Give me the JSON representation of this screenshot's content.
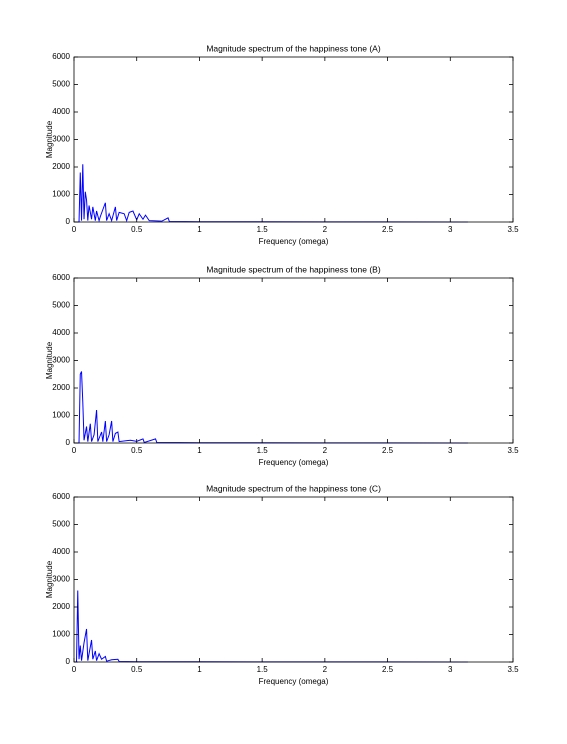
{
  "chart_data": [
    {
      "type": "line",
      "title": "Magnitude spectrum of the happiness tone (A)",
      "xlabel": "Frequency (omega)",
      "ylabel": "Magnitude",
      "color": "#0000ff",
      "x": [
        0,
        0.04,
        0.05,
        0.06,
        0.07,
        0.08,
        0.09,
        0.1,
        0.11,
        0.12,
        0.14,
        0.15,
        0.17,
        0.18,
        0.2,
        0.21,
        0.25,
        0.26,
        0.28,
        0.3,
        0.33,
        0.34,
        0.36,
        0.4,
        0.42,
        0.44,
        0.47,
        0.5,
        0.52,
        0.55,
        0.57,
        0.6,
        0.7,
        0.75,
        0.76,
        1,
        2,
        3.14
      ],
      "values": [
        0,
        0,
        1800,
        50,
        2100,
        100,
        1100,
        800,
        50,
        600,
        100,
        550,
        50,
        400,
        50,
        200,
        700,
        50,
        300,
        50,
        550,
        50,
        350,
        300,
        50,
        350,
        400,
        80,
        300,
        100,
        250,
        50,
        30,
        150,
        20,
        10,
        5,
        0
      ],
      "xlim": [
        0,
        3.5
      ],
      "ylim": [
        0,
        6000
      ],
      "xticks": [
        0,
        0.5,
        1,
        1.5,
        2,
        2.5,
        3,
        3.5
      ],
      "yticks": [
        0,
        1000,
        2000,
        3000,
        4000,
        5000,
        6000
      ]
    },
    {
      "type": "line",
      "title": "Magnitude spectrum of the happiness tone (B)",
      "xlabel": "Frequency (omega)",
      "ylabel": "Magnitude",
      "color": "#0000ff",
      "x": [
        0,
        0.04,
        0.05,
        0.06,
        0.07,
        0.08,
        0.1,
        0.11,
        0.13,
        0.14,
        0.16,
        0.18,
        0.19,
        0.22,
        0.23,
        0.25,
        0.26,
        0.28,
        0.3,
        0.31,
        0.33,
        0.35,
        0.36,
        0.45,
        0.5,
        0.55,
        0.56,
        0.65,
        0.66,
        1,
        2,
        3.14
      ],
      "values": [
        0,
        0,
        2500,
        2600,
        1500,
        100,
        600,
        50,
        700,
        50,
        300,
        1200,
        50,
        400,
        50,
        800,
        50,
        300,
        800,
        50,
        350,
        400,
        50,
        100,
        60,
        150,
        20,
        150,
        20,
        10,
        5,
        0
      ],
      "xlim": [
        0,
        3.5
      ],
      "ylim": [
        0,
        6000
      ],
      "xticks": [
        0,
        0.5,
        1,
        1.5,
        2,
        2.5,
        3,
        3.5
      ],
      "yticks": [
        0,
        1000,
        2000,
        3000,
        4000,
        5000,
        6000
      ]
    },
    {
      "type": "line",
      "title": "Magnitude spectrum of the happiness tone (C)",
      "xlabel": "Frequency (omega)",
      "ylabel": "Magnitude",
      "color": "#0000ff",
      "x": [
        0,
        0.02,
        0.03,
        0.04,
        0.05,
        0.06,
        0.08,
        0.1,
        0.11,
        0.12,
        0.14,
        0.15,
        0.17,
        0.18,
        0.2,
        0.22,
        0.25,
        0.26,
        0.3,
        0.35,
        0.36,
        0.5,
        1,
        2,
        3.14
      ],
      "values": [
        0,
        0,
        2600,
        100,
        600,
        50,
        700,
        1200,
        50,
        300,
        800,
        100,
        400,
        50,
        300,
        100,
        200,
        30,
        80,
        100,
        20,
        10,
        8,
        5,
        0
      ],
      "xlim": [
        0,
        3.5
      ],
      "ylim": [
        0,
        6000
      ],
      "xticks": [
        0,
        0.5,
        1,
        1.5,
        2,
        2.5,
        3,
        3.5
      ],
      "yticks": [
        0,
        1000,
        2000,
        3000,
        4000,
        5000,
        6000
      ]
    }
  ]
}
